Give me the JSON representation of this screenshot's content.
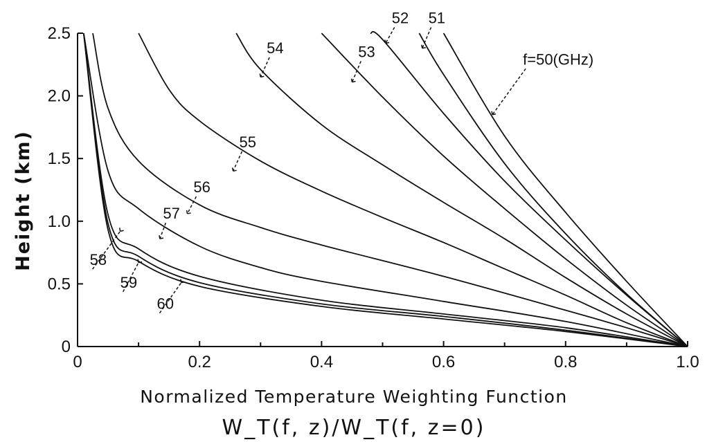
{
  "chart_data": {
    "type": "line",
    "title": "",
    "xlabel": "Normalized Temperature Weighting Function",
    "xlabel_formula": "W_T(f, z)/W_T(f, z=0)",
    "ylabel": "Height (km)",
    "xlim": [
      0,
      1.0
    ],
    "ylim": [
      0,
      2.5
    ],
    "x_ticks": [
      "0",
      "0.2",
      "0.4",
      "0.6",
      "0.8",
      "1.0"
    ],
    "y_ticks": [
      "0",
      "0.5",
      "1.0",
      "1.5",
      "2.0",
      "2.5"
    ],
    "grid": false,
    "series": [
      {
        "name": "f=50(GHz)",
        "x": [
          1.0,
          0.9,
          0.8,
          0.7,
          0.6
        ],
        "y": [
          0,
          0.52,
          1.07,
          1.68,
          2.5
        ]
      },
      {
        "name": "51",
        "x": [
          1.0,
          0.9,
          0.8,
          0.7,
          0.6,
          0.56
        ],
        "y": [
          0,
          0.42,
          0.9,
          1.46,
          2.17,
          2.5
        ]
      },
      {
        "name": "52",
        "x": [
          1.0,
          0.9,
          0.8,
          0.7,
          0.6,
          0.5,
          0.48
        ],
        "y": [
          0,
          0.41,
          0.85,
          1.32,
          1.86,
          2.45,
          2.5
        ]
      },
      {
        "name": "53",
        "x": [
          1.0,
          0.9,
          0.8,
          0.7,
          0.6,
          0.5,
          0.4
        ],
        "y": [
          0,
          0.33,
          0.7,
          1.1,
          1.52,
          1.99,
          2.5
        ]
      },
      {
        "name": "54",
        "x": [
          1.0,
          0.9,
          0.8,
          0.7,
          0.6,
          0.5,
          0.4,
          0.3,
          0.26
        ],
        "y": [
          0,
          0.26,
          0.55,
          0.86,
          1.15,
          1.45,
          1.77,
          2.21,
          2.5
        ]
      },
      {
        "name": "55",
        "x": [
          1.0,
          0.9,
          0.8,
          0.7,
          0.6,
          0.5,
          0.4,
          0.3,
          0.2,
          0.15,
          0.1
        ],
        "y": [
          0,
          0.19,
          0.41,
          0.62,
          0.83,
          1.03,
          1.24,
          1.48,
          1.8,
          2.05,
          2.5
        ]
      },
      {
        "name": "56",
        "x": [
          1.0,
          0.9,
          0.8,
          0.6,
          0.4,
          0.3,
          0.2,
          0.1,
          0.05,
          0.025
        ],
        "y": [
          0,
          0.15,
          0.29,
          0.56,
          0.81,
          0.95,
          1.13,
          1.48,
          1.9,
          2.5
        ]
      },
      {
        "name": "57",
        "x": [
          1.0,
          0.8,
          0.6,
          0.4,
          0.3,
          0.2,
          0.1,
          0.05,
          0.01
        ],
        "y": [
          0,
          0.2,
          0.36,
          0.52,
          0.63,
          0.8,
          1.1,
          1.4,
          2.5
        ]
      },
      {
        "name": "58",
        "x": [
          1.0,
          0.8,
          0.6,
          0.4,
          0.2,
          0.1,
          0.05,
          0.01
        ],
        "y": [
          0,
          0.15,
          0.26,
          0.37,
          0.56,
          0.78,
          1.05,
          2.5
        ]
      },
      {
        "name": "59",
        "x": [
          1.0,
          0.8,
          0.6,
          0.4,
          0.2,
          0.1,
          0.05,
          0.01
        ],
        "y": [
          0,
          0.13,
          0.24,
          0.34,
          0.51,
          0.72,
          0.98,
          2.5
        ]
      },
      {
        "name": "60",
        "x": [
          1.0,
          0.8,
          0.6,
          0.4,
          0.2,
          0.1,
          0.05,
          0.01
        ],
        "y": [
          0,
          0.12,
          0.22,
          0.32,
          0.48,
          0.68,
          0.93,
          2.5
        ]
      }
    ],
    "annotations": [
      {
        "text": "f=50(GHz)",
        "series": "f=50(GHz)",
        "x": 0.68,
        "y": 1.85,
        "text_at": [
          0.73,
          2.25
        ]
      },
      {
        "text": "51",
        "series": "51",
        "x": 0.565,
        "y": 2.38,
        "text_at": [
          0.575,
          2.58
        ]
      },
      {
        "text": "52",
        "series": "52",
        "x": 0.505,
        "y": 2.42,
        "text_at": [
          0.515,
          2.58
        ]
      },
      {
        "text": "53",
        "series": "53",
        "x": 0.45,
        "y": 2.11,
        "text_at": [
          0.46,
          2.31
        ]
      },
      {
        "text": "54",
        "series": "54",
        "x": 0.3,
        "y": 2.15,
        "text_at": [
          0.31,
          2.34
        ]
      },
      {
        "text": "55",
        "series": "55",
        "x": 0.255,
        "y": 1.4,
        "text_at": [
          0.265,
          1.59
        ]
      },
      {
        "text": "56",
        "series": "56",
        "x": 0.18,
        "y": 1.06,
        "text_at": [
          0.19,
          1.23
        ]
      },
      {
        "text": "57",
        "series": "57",
        "x": 0.135,
        "y": 0.86,
        "text_at": [
          0.14,
          1.02
        ]
      },
      {
        "text": "58",
        "series": "58",
        "x": 0.07,
        "y": 0.92,
        "text_at": [
          0.02,
          0.65
        ]
      },
      {
        "text": "59",
        "series": "59",
        "x": 0.1,
        "y": 0.67,
        "text_at": [
          0.07,
          0.47
        ]
      },
      {
        "text": "60",
        "series": "60",
        "x": 0.17,
        "y": 0.51,
        "text_at": [
          0.13,
          0.3
        ]
      }
    ]
  }
}
